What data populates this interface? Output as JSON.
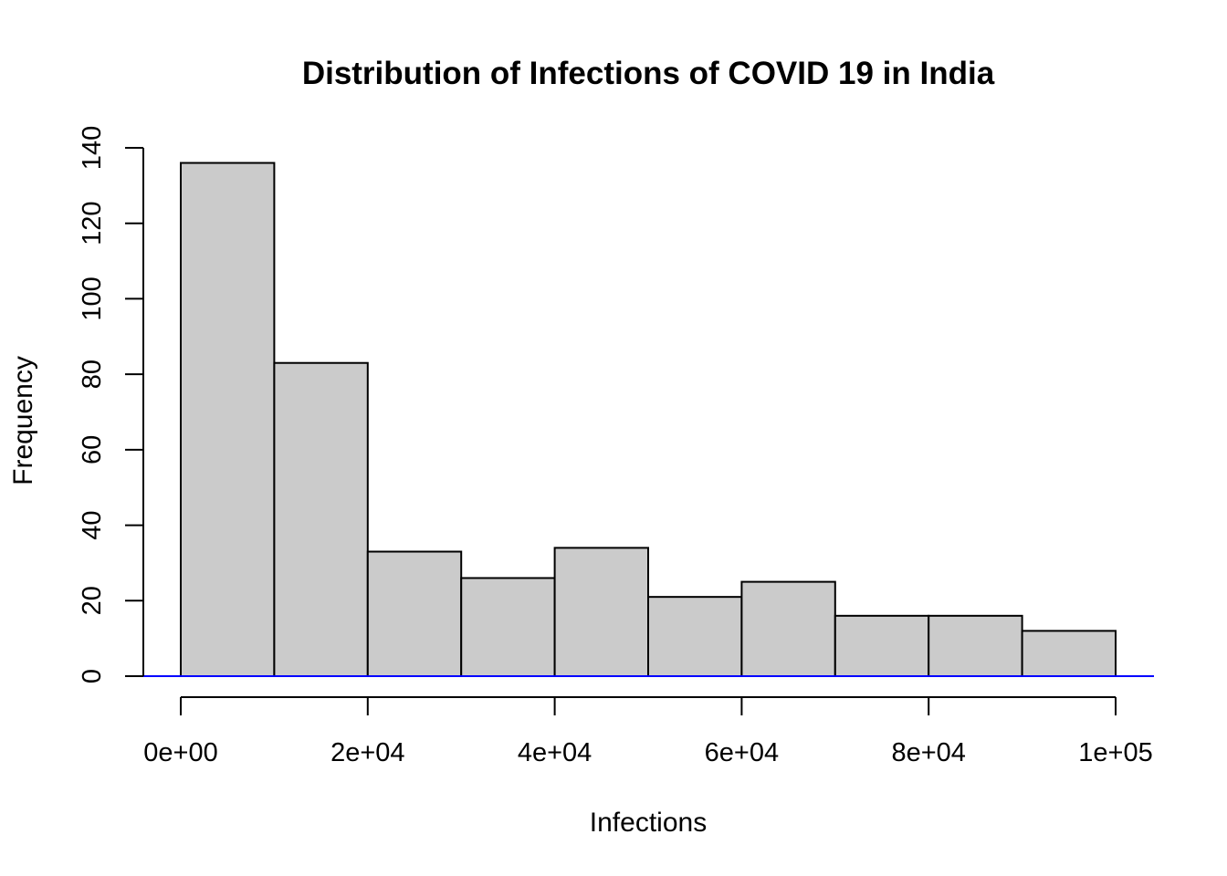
{
  "chart_data": {
    "type": "bar",
    "title": "Distribution of Infections of COVID 19 in India",
    "xlabel": "Infections",
    "ylabel": "Frequency",
    "bins": [
      {
        "from": 0,
        "to": 10000,
        "count": 136
      },
      {
        "from": 10000,
        "to": 20000,
        "count": 83
      },
      {
        "from": 20000,
        "to": 30000,
        "count": 33
      },
      {
        "from": 30000,
        "to": 40000,
        "count": 26
      },
      {
        "from": 40000,
        "to": 50000,
        "count": 34
      },
      {
        "from": 50000,
        "to": 60000,
        "count": 21
      },
      {
        "from": 60000,
        "to": 70000,
        "count": 25
      },
      {
        "from": 70000,
        "to": 80000,
        "count": 16
      },
      {
        "from": 80000,
        "to": 90000,
        "count": 16
      },
      {
        "from": 90000,
        "to": 100000,
        "count": 12
      }
    ],
    "x_ticks": [
      {
        "value": 0,
        "label": "0e+00"
      },
      {
        "value": 20000,
        "label": "2e+04"
      },
      {
        "value": 40000,
        "label": "4e+04"
      },
      {
        "value": 60000,
        "label": "6e+04"
      },
      {
        "value": 80000,
        "label": "8e+04"
      },
      {
        "value": 100000,
        "label": "1e+05"
      }
    ],
    "y_ticks": [
      {
        "value": 0,
        "label": "0"
      },
      {
        "value": 20,
        "label": "20"
      },
      {
        "value": 40,
        "label": "40"
      },
      {
        "value": 60,
        "label": "60"
      },
      {
        "value": 80,
        "label": "80"
      },
      {
        "value": 100,
        "label": "100"
      },
      {
        "value": 120,
        "label": "120"
      },
      {
        "value": 140,
        "label": "140"
      }
    ],
    "xlim": [
      0,
      100000
    ],
    "ylim": [
      0,
      140
    ],
    "grid": false,
    "legend": "none",
    "colors": {
      "bar_fill": "#cbcbcb",
      "bar_stroke": "#000000",
      "baseline": "#0000ff"
    }
  }
}
